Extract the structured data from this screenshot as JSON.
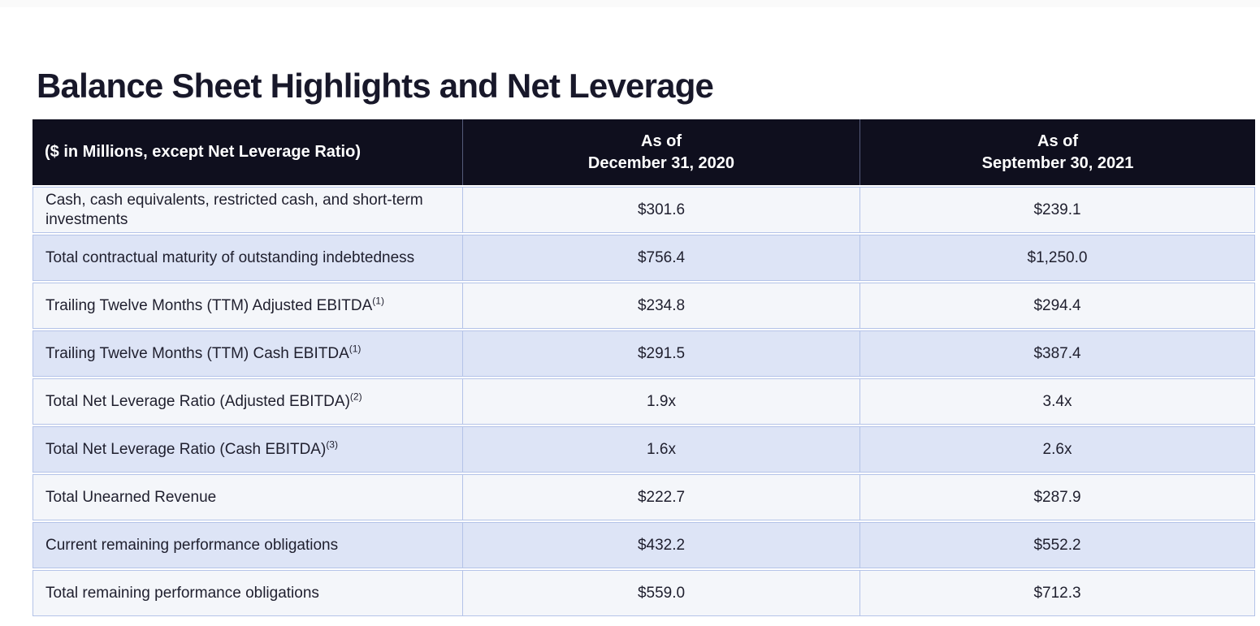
{
  "page": {
    "title": "Balance Sheet Highlights and Net Leverage"
  },
  "table": {
    "header": {
      "label_column": "($ in Millions, except Net Leverage Ratio)",
      "columns": [
        {
          "line1": "As of",
          "line2": "December 31, 2020"
        },
        {
          "line1": "As of",
          "line2": "September 30, 2021"
        }
      ]
    },
    "rows": [
      {
        "label": "Cash, cash equivalents, restricted cash, and short-term investments",
        "sup": "",
        "dec_2020": "$301.6",
        "sep_2021": "$239.1"
      },
      {
        "label": "Total contractual maturity of outstanding indebtedness",
        "sup": "",
        "dec_2020": "$756.4",
        "sep_2021": "$1,250.0"
      },
      {
        "label": "Trailing Twelve Months (TTM) Adjusted EBITDA",
        "sup": "(1)",
        "dec_2020": "$234.8",
        "sep_2021": "$294.4"
      },
      {
        "label": "Trailing Twelve Months (TTM) Cash EBITDA",
        "sup": "(1)",
        "dec_2020": "$291.5",
        "sep_2021": "$387.4"
      },
      {
        "label": "Total Net Leverage Ratio (Adjusted EBITDA)",
        "sup": "(2)",
        "dec_2020": "1.9x",
        "sep_2021": "3.4x"
      },
      {
        "label": "Total Net Leverage Ratio (Cash EBITDA)",
        "sup": "(3)",
        "dec_2020": "1.6x",
        "sep_2021": "2.6x"
      },
      {
        "label": "Total Unearned Revenue",
        "sup": "",
        "dec_2020": "$222.7",
        "sep_2021": "$287.9"
      },
      {
        "label": "Current remaining performance obligations",
        "sup": "",
        "dec_2020": "$432.2",
        "sep_2021": "$552.2"
      },
      {
        "label": "Total remaining performance obligations",
        "sup": "",
        "dec_2020": "$559.0",
        "sep_2021": "$712.3"
      }
    ]
  },
  "colors": {
    "header_bg": "#0f0f1e",
    "header_text": "#ffffff",
    "row_light_bg": "#f4f6fa",
    "row_alt_bg": "#dde4f6",
    "border": "#b4c3e8",
    "title_text": "#18182a",
    "body_text": "#1f1f2e"
  }
}
